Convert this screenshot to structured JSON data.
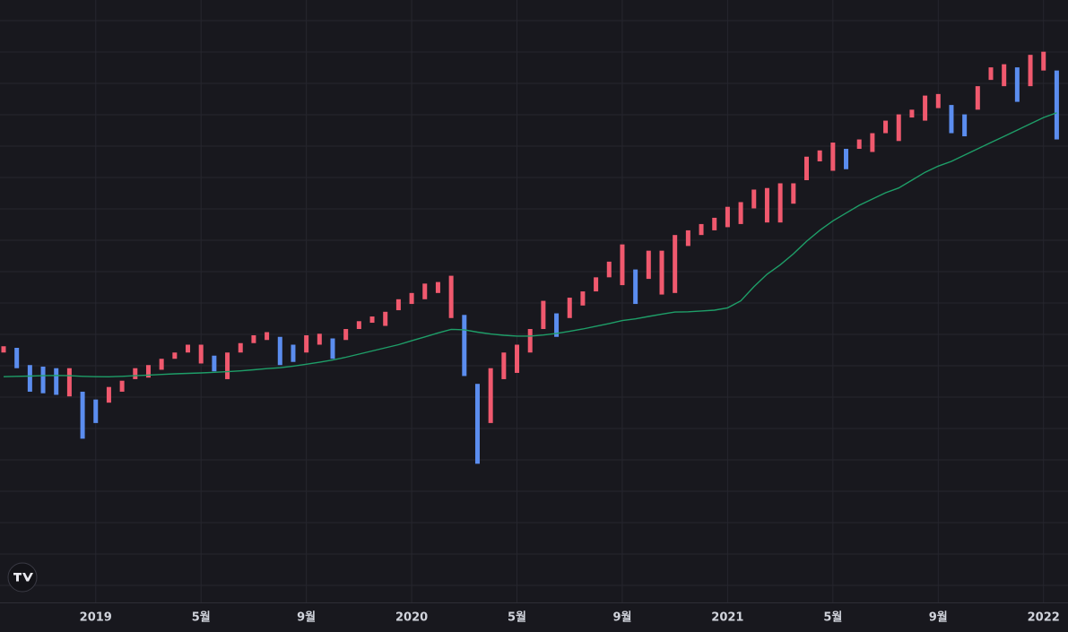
{
  "chart_data": {
    "type": "ohlc",
    "categories": [
      null,
      null,
      null,
      null,
      null,
      null,
      null,
      "2019",
      null,
      null,
      null,
      null,
      null,
      null,
      null,
      "5월",
      null,
      null,
      null,
      null,
      null,
      null,
      null,
      "9월",
      null,
      null,
      null,
      null,
      null,
      null,
      null,
      "2020",
      null,
      null,
      null,
      null,
      null,
      null,
      null,
      "5월",
      null,
      null,
      null,
      null,
      null,
      null,
      null,
      "9월",
      null,
      null,
      null,
      null,
      null,
      null,
      null,
      "2021",
      null,
      null,
      null,
      null,
      null,
      null,
      null,
      "5월",
      null,
      null,
      null,
      null,
      null,
      null,
      null,
      "9월",
      null,
      null,
      null,
      null,
      null,
      null,
      null,
      "2022",
      null
    ],
    "high": [
      2940,
      2930,
      2820,
      2810,
      2800,
      2800,
      2650,
      2600,
      2680,
      2720,
      2800,
      2820,
      2860,
      2900,
      2950,
      2950,
      2880,
      2900,
      2960,
      3010,
      3030,
      3000,
      2950,
      3010,
      3020,
      2990,
      3050,
      3100,
      3130,
      3160,
      3240,
      3280,
      3340,
      3350,
      3390,
      3140,
      2700,
      2800,
      2900,
      2950,
      3050,
      3230,
      3150,
      3250,
      3290,
      3380,
      3480,
      3590,
      3430,
      3550,
      3550,
      3650,
      3680,
      3720,
      3760,
      3830,
      3860,
      3940,
      3950,
      3980,
      3980,
      4150,
      4190,
      4240,
      4200,
      4260,
      4300,
      4380,
      4420,
      4450,
      4540,
      4550,
      4480,
      4420,
      4600,
      4720,
      4740,
      4720,
      4800,
      4820,
      4700
    ],
    "low": [
      2900,
      2800,
      2650,
      2640,
      2630,
      2620,
      2350,
      2450,
      2580,
      2650,
      2730,
      2740,
      2790,
      2860,
      2900,
      2830,
      2780,
      2730,
      2900,
      2960,
      2980,
      2820,
      2840,
      2900,
      2950,
      2860,
      2980,
      3050,
      3090,
      3070,
      3170,
      3210,
      3240,
      3280,
      3120,
      2750,
      2190,
      2450,
      2730,
      2770,
      2900,
      3050,
      3000,
      3120,
      3200,
      3290,
      3380,
      3330,
      3210,
      3370,
      3270,
      3280,
      3580,
      3650,
      3680,
      3700,
      3720,
      3820,
      3730,
      3730,
      3850,
      4000,
      4120,
      4060,
      4070,
      4200,
      4180,
      4300,
      4250,
      4400,
      4380,
      4460,
      4300,
      4280,
      4450,
      4640,
      4600,
      4500,
      4600,
      4700,
      4260
    ],
    "up_color": "#f0596e",
    "down_color": "#5b8def",
    "ma": {
      "color": "#1e9e68",
      "values": [
        2746,
        2748,
        2750,
        2752,
        2754,
        2752,
        2748,
        2746,
        2745,
        2748,
        2752,
        2756,
        2760,
        2764,
        2767,
        2770,
        2774,
        2778,
        2783,
        2790,
        2797,
        2803,
        2813,
        2825,
        2838,
        2852,
        2870,
        2890,
        2910,
        2930,
        2950,
        2975,
        3000,
        3025,
        3048,
        3045,
        3030,
        3018,
        3010,
        3005,
        3005,
        3012,
        3022,
        3035,
        3050,
        3068,
        3085,
        3104,
        3115,
        3130,
        3145,
        3158,
        3160,
        3165,
        3170,
        3185,
        3230,
        3320,
        3400,
        3460,
        3530,
        3610,
        3680,
        3740,
        3790,
        3840,
        3880,
        3920,
        3950,
        4000,
        4050,
        4090,
        4120,
        4160,
        4200,
        4240,
        4280,
        4320,
        4360,
        4400,
        4430
      ]
    },
    "ylim": [
      1305,
      5150
    ]
  }
}
